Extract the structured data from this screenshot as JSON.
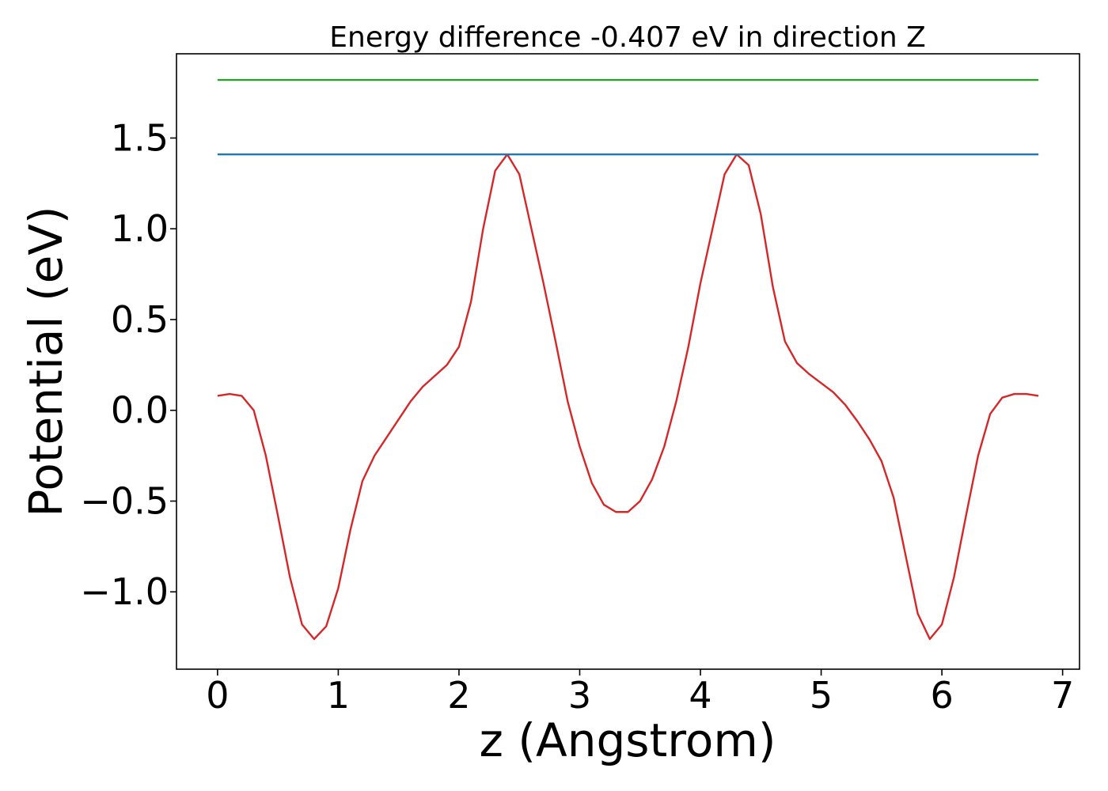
{
  "chart_data": {
    "type": "line",
    "title": "Energy difference -0.407 eV in direction Z",
    "xlabel": "z (Angstrom)",
    "ylabel": "Potential (eV)",
    "xlim": [
      -0.34,
      7.14
    ],
    "ylim": [
      -1.426,
      1.964
    ],
    "x_ticks": [
      0,
      1,
      2,
      3,
      4,
      5,
      6,
      7
    ],
    "x_tick_labels": [
      "0",
      "1",
      "2",
      "3",
      "4",
      "5",
      "6",
      "7"
    ],
    "y_ticks": [
      -1.0,
      -0.5,
      0.0,
      0.5,
      1.0,
      1.5
    ],
    "y_tick_labels": [
      "−1.0",
      "−0.5",
      "0.0",
      "0.5",
      "1.0",
      "1.5"
    ],
    "grid": false,
    "series": [
      {
        "color": "#d62728",
        "x": [
          0,
          0.1,
          0.2,
          0.3,
          0.4,
          0.5,
          0.6,
          0.7,
          0.8,
          0.9,
          1.0,
          1.1,
          1.2,
          1.3,
          1.4,
          1.5,
          1.6,
          1.7,
          1.8,
          1.9,
          2.0,
          2.1,
          2.2,
          2.3,
          2.4,
          2.5,
          2.6,
          2.7,
          2.8,
          2.9,
          3.0,
          3.1,
          3.2,
          3.3,
          3.4,
          3.5,
          3.6,
          3.7,
          3.8,
          3.9,
          4.0,
          4.1,
          4.2,
          4.3,
          4.4,
          4.5,
          4.6,
          4.7,
          4.8,
          4.9,
          5.0,
          5.1,
          5.2,
          5.3,
          5.4,
          5.5,
          5.6,
          5.7,
          5.8,
          5.9,
          6.0,
          6.1,
          6.2,
          6.3,
          6.4,
          6.5,
          6.6,
          6.7,
          6.8
        ],
        "y": [
          0.08,
          0.09,
          0.08,
          0.0,
          -0.25,
          -0.58,
          -0.92,
          -1.18,
          -1.26,
          -1.19,
          -0.98,
          -0.66,
          -0.39,
          -0.25,
          -0.15,
          -0.05,
          0.05,
          0.13,
          0.19,
          0.25,
          0.35,
          0.6,
          1.0,
          1.32,
          1.41,
          1.3,
          1.0,
          0.7,
          0.38,
          0.05,
          -0.2,
          -0.4,
          -0.52,
          -0.56,
          -0.56,
          -0.5,
          -0.38,
          -0.2,
          0.05,
          0.35,
          0.7,
          1.0,
          1.3,
          1.41,
          1.35,
          1.08,
          0.68,
          0.38,
          0.26,
          0.2,
          0.15,
          0.1,
          0.03,
          -0.06,
          -0.16,
          -0.28,
          -0.48,
          -0.8,
          -1.12,
          -1.26,
          -1.18,
          -0.92,
          -0.58,
          -0.25,
          -0.02,
          0.07,
          0.09,
          0.09,
          0.08
        ]
      },
      {
        "color": "#1f77b4",
        "x": [
          0,
          6.8
        ],
        "y": [
          1.41,
          1.41
        ]
      },
      {
        "color": "#2ca02c",
        "x": [
          0,
          6.8
        ],
        "y": [
          1.82,
          1.82
        ]
      }
    ]
  }
}
